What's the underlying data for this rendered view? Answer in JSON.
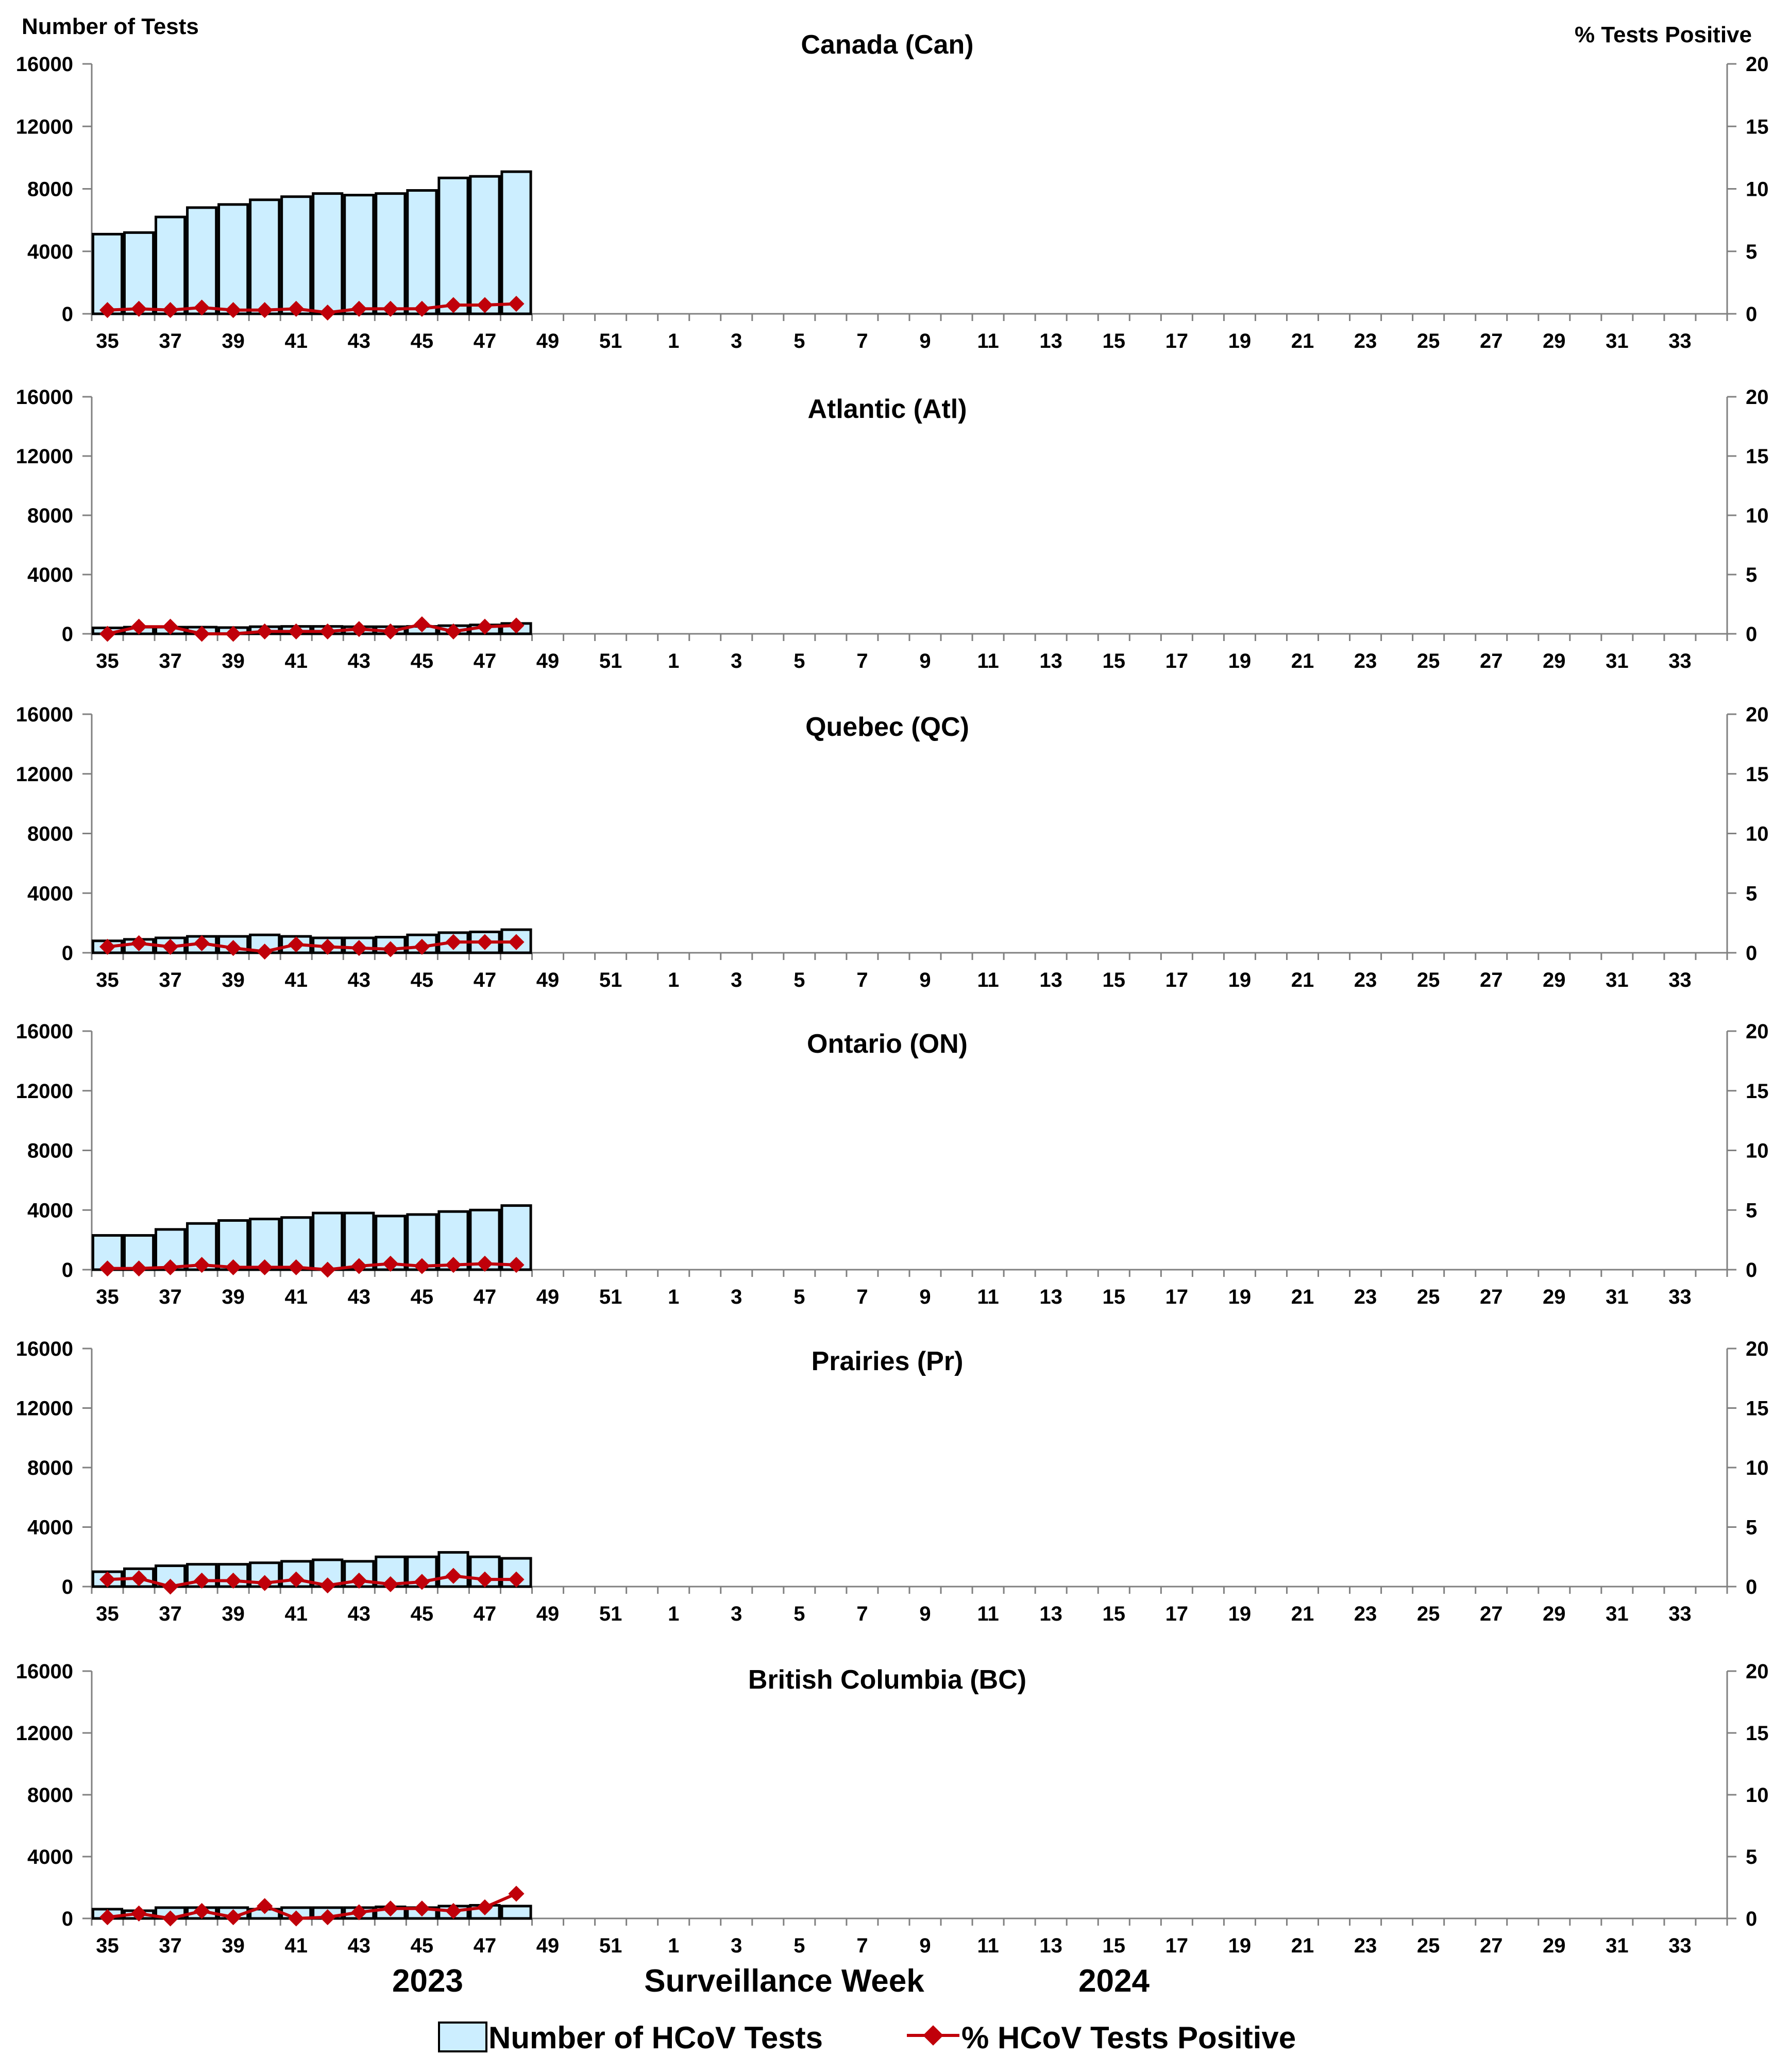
{
  "chart_data": {
    "type": "bar",
    "left_axis_label": "Number of Tests",
    "right_axis_label": "% Tests Positive",
    "xlabel": "Surveillance Week",
    "year_labels": [
      "2023",
      "2024"
    ],
    "week_sequence": [
      35,
      36,
      37,
      38,
      39,
      40,
      41,
      42,
      43,
      44,
      45,
      46,
      47,
      48,
      49,
      50,
      51,
      52,
      1,
      2,
      3,
      4,
      5,
      6,
      7,
      8,
      9,
      10,
      11,
      12,
      13,
      14,
      15,
      16,
      17,
      18,
      19,
      20,
      21,
      22,
      23,
      24,
      25,
      26,
      27,
      28,
      29,
      30,
      31,
      32,
      33,
      34
    ],
    "x_tick_labels": [
      "35",
      "37",
      "39",
      "41",
      "43",
      "45",
      "47",
      "49",
      "51",
      "1",
      "3",
      "5",
      "7",
      "9",
      "11",
      "13",
      "15",
      "17",
      "19",
      "21",
      "23",
      "25",
      "27",
      "29",
      "31",
      "33"
    ],
    "ylim_left": [
      0,
      16000
    ],
    "ylim_right": [
      0,
      20
    ],
    "left_ticks": [
      "0",
      "4000",
      "8000",
      "12000",
      "16000"
    ],
    "right_ticks": [
      "0",
      "5",
      "10",
      "15",
      "20"
    ],
    "legend": {
      "bars": "Number of HCoV Tests",
      "line": "% HCoV Tests Positive",
      "position": "bottom"
    },
    "colors": {
      "bar_fill": "#CCEEFF",
      "bar_stroke": "#000000",
      "line": "#C0000A",
      "axis": "#808080"
    },
    "panels": [
      {
        "title": "Canada (Can)",
        "categories": [
          "35",
          "36",
          "37",
          "38",
          "39",
          "40",
          "41",
          "42",
          "43",
          "44",
          "45",
          "46",
          "47",
          "48"
        ],
        "tests": [
          5100,
          5200,
          6200,
          6800,
          7000,
          7300,
          7500,
          7700,
          7600,
          7700,
          7900,
          8700,
          8800,
          9100
        ],
        "percent_positive": [
          0.3,
          0.4,
          0.3,
          0.5,
          0.3,
          0.3,
          0.4,
          0.1,
          0.4,
          0.4,
          0.4,
          0.7,
          0.7,
          0.8
        ]
      },
      {
        "title": "Atlantic (Atl)",
        "categories": [
          "35",
          "36",
          "37",
          "38",
          "39",
          "40",
          "41",
          "42",
          "43",
          "44",
          "45",
          "46",
          "47",
          "48"
        ],
        "tests": [
          400,
          450,
          450,
          450,
          420,
          480,
          500,
          500,
          480,
          480,
          500,
          550,
          600,
          700
        ],
        "percent_positive": [
          0.0,
          0.6,
          0.6,
          0.0,
          0.0,
          0.2,
          0.2,
          0.2,
          0.4,
          0.2,
          0.8,
          0.2,
          0.6,
          0.7
        ]
      },
      {
        "title": "Quebec (QC)",
        "categories": [
          "35",
          "36",
          "37",
          "38",
          "39",
          "40",
          "41",
          "42",
          "43",
          "44",
          "45",
          "46",
          "47",
          "48"
        ],
        "tests": [
          800,
          900,
          1000,
          1100,
          1100,
          1200,
          1100,
          1000,
          1000,
          1050,
          1200,
          1350,
          1400,
          1550
        ],
        "percent_positive": [
          0.5,
          0.8,
          0.5,
          0.8,
          0.4,
          0.1,
          0.7,
          0.5,
          0.4,
          0.3,
          0.5,
          0.9,
          0.9,
          0.9
        ]
      },
      {
        "title": "Ontario (ON)",
        "categories": [
          "35",
          "36",
          "37",
          "38",
          "39",
          "40",
          "41",
          "42",
          "43",
          "44",
          "45",
          "46",
          "47",
          "48"
        ],
        "tests": [
          2300,
          2300,
          2700,
          3100,
          3300,
          3400,
          3500,
          3800,
          3800,
          3600,
          3700,
          3900,
          4000,
          4300
        ],
        "percent_positive": [
          0.1,
          0.1,
          0.2,
          0.4,
          0.2,
          0.2,
          0.2,
          0.0,
          0.3,
          0.5,
          0.3,
          0.4,
          0.5,
          0.4
        ]
      },
      {
        "title": "Prairies (Pr)",
        "categories": [
          "35",
          "36",
          "37",
          "38",
          "39",
          "40",
          "41",
          "42",
          "43",
          "44",
          "45",
          "46",
          "47",
          "48"
        ],
        "tests": [
          1000,
          1200,
          1400,
          1500,
          1500,
          1600,
          1700,
          1800,
          1700,
          2000,
          2000,
          2300,
          2000,
          1900
        ],
        "percent_positive": [
          0.6,
          0.7,
          0.0,
          0.5,
          0.5,
          0.3,
          0.6,
          0.1,
          0.5,
          0.2,
          0.4,
          0.9,
          0.6,
          0.6
        ]
      },
      {
        "title": "British Columbia (BC)",
        "categories": [
          "35",
          "36",
          "37",
          "38",
          "39",
          "40",
          "41",
          "42",
          "43",
          "44",
          "45",
          "46",
          "47",
          "48"
        ],
        "tests": [
          600,
          500,
          700,
          700,
          700,
          600,
          700,
          700,
          700,
          750,
          700,
          800,
          850,
          800
        ],
        "percent_positive": [
          0.1,
          0.4,
          0.0,
          0.6,
          0.1,
          1.0,
          0.0,
          0.1,
          0.5,
          0.8,
          0.8,
          0.6,
          0.9,
          2.0
        ]
      }
    ]
  }
}
